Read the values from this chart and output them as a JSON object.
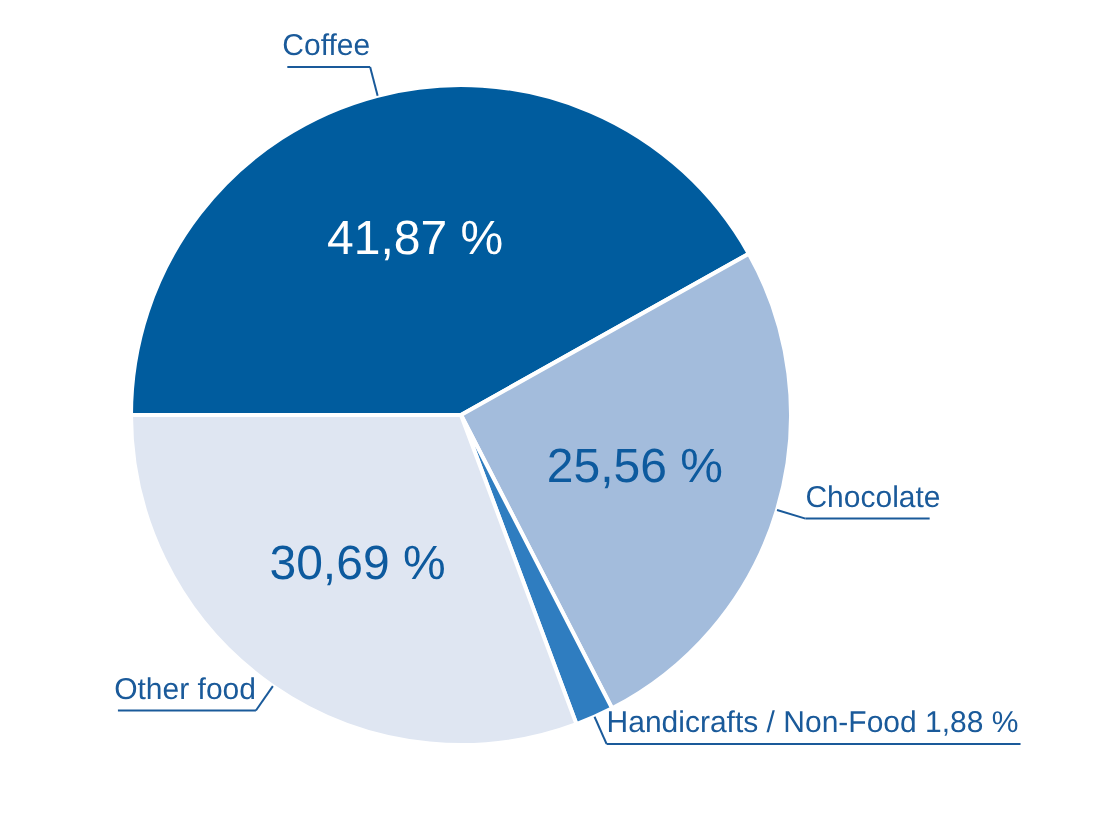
{
  "chart_data": {
    "type": "pie",
    "categories": [
      "Coffee",
      "Chocolate",
      "Handicrafts / Non-Food",
      "Other food"
    ],
    "values": [
      41.87,
      25.56,
      1.88,
      30.69
    ],
    "colors": [
      "#005c9e",
      "#a3bcdc",
      "#2f7dc0",
      "#dfe6f2"
    ],
    "value_labels": [
      "41,87 %",
      "25,56 %",
      "1,88 %",
      "30,69 %"
    ]
  }
}
